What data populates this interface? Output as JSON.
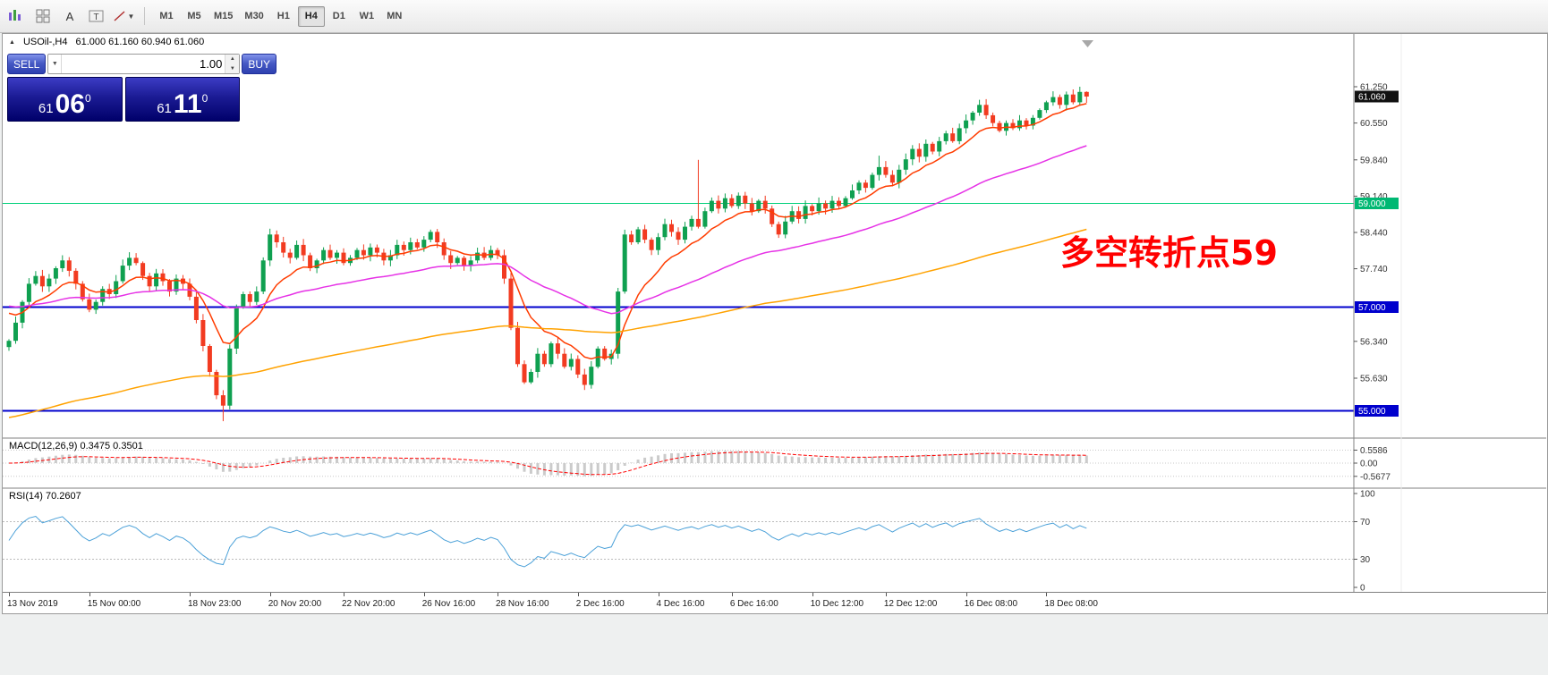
{
  "toolbar": {
    "timeframes": {
      "items": [
        "M1",
        "M5",
        "M15",
        "M30",
        "H1",
        "H4",
        "D1",
        "W1",
        "MN"
      ],
      "active": "H4"
    }
  },
  "chart": {
    "header_symbol": "USOil-,H4",
    "header_ohlc": "61.000 61.160 60.940 61.060",
    "annotation": {
      "text": "多空转折点59",
      "color": "#ff0000"
    }
  },
  "trade_panel": {
    "sell_label": "SELL",
    "buy_label": "BUY",
    "volume": "1.00",
    "bid_head": "61",
    "bid_big": "06",
    "bid_sup": "0",
    "ask_head": "61",
    "ask_big": "11",
    "ask_sup": "0"
  },
  "price_axis": {
    "ticks": [
      {
        "label": "61.250",
        "price": 61.25
      },
      {
        "label": "60.550",
        "price": 60.55
      },
      {
        "label": "59.840",
        "price": 59.84
      },
      {
        "label": "59.140",
        "price": 59.14
      },
      {
        "label": "58.440",
        "price": 58.44
      },
      {
        "label": "57.740",
        "price": 57.74
      },
      {
        "label": "56.340",
        "price": 56.34
      },
      {
        "label": "55.630",
        "price": 55.63
      }
    ],
    "boxes": [
      {
        "label": "61.060",
        "price": 61.06,
        "bg": "#111111"
      },
      {
        "label": "59.000",
        "price": 59.0,
        "bg": "#00b873"
      },
      {
        "label": "57.000",
        "price": 57.0,
        "bg": "#0000cd"
      },
      {
        "label": "55.000",
        "price": 55.0,
        "bg": "#0000cd"
      }
    ]
  },
  "indicators": {
    "macd": {
      "label": "MACD(12,26,9) 0.3475 0.3501",
      "ticks": [
        {
          "label": "0.5586",
          "value": 0.5586
        },
        {
          "label": "0.00",
          "value": 0
        },
        {
          "label": "-0.5677",
          "value": -0.5677
        }
      ]
    },
    "rsi": {
      "label": "RSI(14) 70.2607",
      "ticks": [
        {
          "label": "100",
          "value": 100
        },
        {
          "label": "70",
          "value": 70
        },
        {
          "label": "30",
          "value": 30
        },
        {
          "label": "0",
          "value": 0
        }
      ],
      "levels": [
        70,
        30
      ]
    }
  },
  "time_axis": {
    "labels": [
      "13 Nov 2019",
      "15 Nov 00:00",
      "18 Nov 23:00",
      "20 Nov 20:00",
      "22 Nov 20:00",
      "26 Nov 16:00",
      "28 Nov 16:00",
      "2 Dec 16:00",
      "4 Dec 16:00",
      "6 Dec 16:00",
      "10 Dec 12:00",
      "12 Dec 12:00",
      "16 Dec 08:00",
      "18 Dec 08:00"
    ],
    "indices": [
      0,
      12,
      27,
      39,
      50,
      62,
      73,
      85,
      97,
      108,
      120,
      131,
      143,
      155
    ]
  },
  "chart_data": {
    "type": "candlestick",
    "symbol": "USOil-",
    "period": "H4",
    "title": "USOil-,H4",
    "current_ohlc": {
      "open": 61.0,
      "high": 61.16,
      "low": 60.94,
      "close": 61.06
    },
    "current_price": 61.06,
    "y_axis": {
      "min": 54.7,
      "max": 61.35
    },
    "up_color": "#0fa050",
    "down_color": "#f23b21",
    "closes": [
      56.35,
      56.7,
      57.1,
      57.45,
      57.6,
      57.4,
      57.55,
      57.75,
      57.9,
      57.7,
      57.45,
      57.15,
      56.95,
      57.1,
      57.35,
      57.25,
      57.5,
      57.8,
      57.95,
      57.85,
      57.6,
      57.4,
      57.65,
      57.5,
      57.3,
      57.55,
      57.45,
      57.2,
      56.75,
      56.25,
      55.75,
      55.3,
      55.1,
      56.2,
      57.0,
      57.25,
      57.1,
      57.3,
      57.9,
      58.4,
      58.25,
      58.05,
      57.95,
      58.2,
      58.0,
      57.75,
      57.9,
      58.1,
      57.95,
      58.05,
      57.85,
      57.95,
      58.1,
      58.0,
      58.15,
      58.05,
      57.9,
      58.0,
      58.2,
      58.1,
      58.25,
      58.15,
      58.3,
      58.45,
      58.25,
      58.0,
      57.85,
      57.95,
      57.8,
      57.9,
      58.05,
      57.95,
      58.1,
      58.0,
      57.55,
      56.6,
      55.9,
      55.55,
      55.75,
      56.1,
      55.9,
      56.3,
      56.1,
      55.85,
      56.0,
      55.7,
      55.5,
      55.85,
      56.2,
      56.0,
      56.1,
      57.3,
      58.4,
      58.25,
      58.5,
      58.3,
      58.1,
      58.35,
      58.6,
      58.45,
      58.3,
      58.55,
      58.7,
      58.55,
      58.85,
      59.05,
      58.9,
      59.1,
      58.95,
      59.15,
      59.0,
      58.85,
      59.05,
      58.9,
      58.6,
      58.4,
      58.65,
      58.85,
      58.7,
      58.95,
      58.85,
      59.0,
      58.9,
      59.05,
      58.95,
      59.1,
      59.25,
      59.4,
      59.3,
      59.55,
      59.7,
      59.55,
      59.4,
      59.65,
      59.85,
      60.05,
      59.9,
      60.15,
      60.0,
      60.2,
      60.35,
      60.2,
      60.45,
      60.6,
      60.75,
      60.9,
      60.7,
      60.55,
      60.4,
      60.55,
      60.45,
      60.6,
      60.5,
      60.65,
      60.8,
      60.95,
      61.05,
      60.9,
      61.1,
      60.95,
      61.15,
      61.06
    ],
    "wick_overrides": {
      "32": {
        "low": 54.8
      },
      "103": {
        "high": 59.84
      },
      "130": {
        "high": 59.92
      },
      "160": {
        "high": 61.25
      },
      "161": {
        "high": 61.16,
        "low": 60.94
      }
    },
    "moving_averages": [
      {
        "period": 10,
        "color": "#ff3c00",
        "seed": 57.0
      },
      {
        "period": 45,
        "color": "#e632e6",
        "seed": 57.05
      },
      {
        "period": 150,
        "color": "#ffa200",
        "seed": 54.85
      }
    ],
    "hlines": [
      {
        "price": 59.0,
        "color": "#00d17a",
        "width": 1,
        "label": "59.000"
      },
      {
        "price": 57.0,
        "color": "#0000cd",
        "width": 2,
        "label": "57.000"
      },
      {
        "price": 55.0,
        "color": "#0000cd",
        "width": 2,
        "label": "55.000"
      }
    ]
  }
}
